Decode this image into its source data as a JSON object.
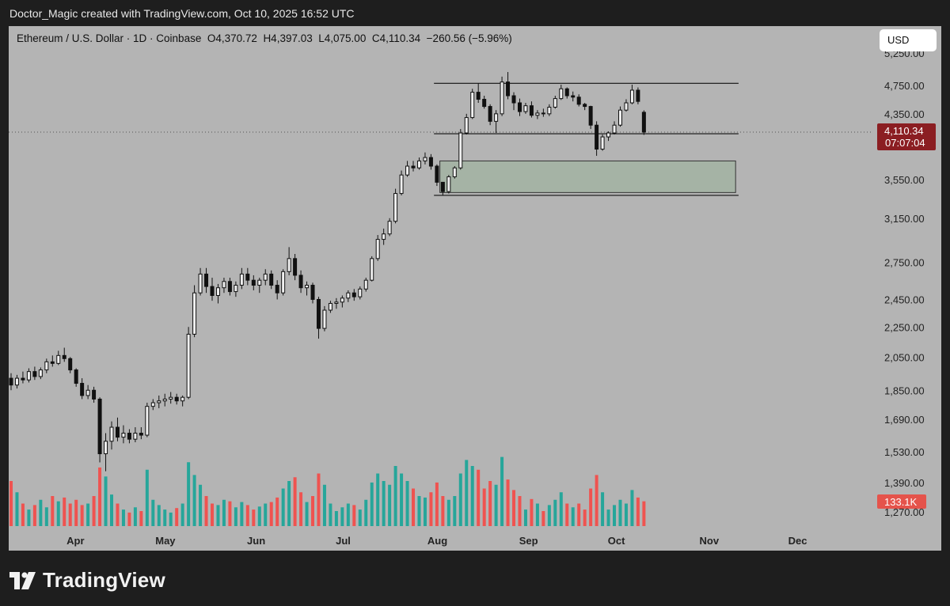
{
  "header": {
    "attribution": "Doctor_Magic created with TradingView.com, Oct 10, 2025 16:52 UTC"
  },
  "symbol_line": {
    "pair": "Ethereum / U.S. Dollar · 1D · Coinbase",
    "open": "O4,370.72",
    "high": "H4,397.03",
    "low": "L4,075.00",
    "close": "C4,110.34",
    "change": "−260.56 (−5.96%)"
  },
  "currency_button": "USD",
  "price_badge": {
    "price": "4,110.34",
    "countdown": "07:07:04",
    "color": "#8b1e22"
  },
  "volume_badge": {
    "value": "133.1K",
    "color": "#e5534b"
  },
  "brand": {
    "name": "TradingView",
    "icon": "tradingview-logo-icon"
  },
  "chart_data": {
    "type": "candlestick",
    "title": "",
    "xlabel": "",
    "ylabel": "",
    "y_scale": "log",
    "ylim": [
      1200,
      5400
    ],
    "y_ticks": [
      5250,
      4750,
      4350,
      3550,
      3150,
      2750,
      2450,
      2250,
      2050,
      1850,
      1690,
      1530,
      1390,
      1270
    ],
    "y_tick_labels": [
      "5,250.00",
      "4,750.00",
      "4,350.00",
      "3,550.00",
      "3,150.00",
      "2,750.00",
      "2,450.00",
      "2,250.00",
      "2,050.00",
      "1,850.00",
      "1,690.00",
      "1,530.00",
      "1,390.00",
      "1,270.00"
    ],
    "x_labels": [
      {
        "label": "Apr",
        "date": "2025-04-01"
      },
      {
        "label": "May",
        "date": "2025-05-01"
      },
      {
        "label": "Jun",
        "date": "2025-06-01"
      },
      {
        "label": "Jul",
        "date": "2025-07-01"
      },
      {
        "label": "Aug",
        "date": "2025-08-01"
      },
      {
        "label": "Sep",
        "date": "2025-09-01"
      },
      {
        "label": "Oct",
        "date": "2025-10-01"
      },
      {
        "label": "Nov",
        "date": "2025-11-01"
      },
      {
        "label": "Dec",
        "date": "2025-12-01"
      }
    ],
    "x_range": [
      "2025-03-10",
      "2025-12-26"
    ],
    "current_price": 4110.34,
    "colors": {
      "up": "#26a69a",
      "down": "#ef5350",
      "candle": "#111111",
      "zone": "#a3b3a3"
    },
    "levels": [
      {
        "price": 4780,
        "from": "2025-07-31",
        "to": "2025-11-11"
      },
      {
        "price": 4090,
        "from": "2025-07-31",
        "to": "2025-11-11"
      },
      {
        "price": 3380,
        "from": "2025-07-31",
        "to": "2025-11-11"
      }
    ],
    "zone": {
      "top": 3760,
      "bottom": 3410,
      "from": "2025-08-02",
      "to": "2025-11-10"
    },
    "candles": [
      [
        "2025-03-10",
        1920,
        1950,
        1850,
        1880
      ],
      [
        "2025-03-12",
        1880,
        1940,
        1860,
        1920
      ],
      [
        "2025-03-14",
        1920,
        1960,
        1890,
        1910
      ],
      [
        "2025-03-16",
        1910,
        1980,
        1895,
        1960
      ],
      [
        "2025-03-18",
        1960,
        1990,
        1910,
        1930
      ],
      [
        "2025-03-20",
        1930,
        1985,
        1915,
        1970
      ],
      [
        "2025-03-22",
        1970,
        2040,
        1950,
        2020
      ],
      [
        "2025-03-24",
        2020,
        2060,
        1990,
        2010
      ],
      [
        "2025-03-26",
        2010,
        2090,
        2000,
        2060
      ],
      [
        "2025-03-28",
        2060,
        2110,
        2020,
        2040
      ],
      [
        "2025-03-30",
        2040,
        2050,
        1950,
        1970
      ],
      [
        "2025-04-01",
        1970,
        1980,
        1870,
        1890
      ],
      [
        "2025-04-03",
        1890,
        1920,
        1800,
        1820
      ],
      [
        "2025-04-05",
        1820,
        1880,
        1800,
        1850
      ],
      [
        "2025-04-07",
        1850,
        1870,
        1780,
        1800
      ],
      [
        "2025-04-09",
        1800,
        1810,
        1480,
        1520
      ],
      [
        "2025-04-11",
        1520,
        1620,
        1440,
        1580
      ],
      [
        "2025-04-13",
        1580,
        1680,
        1540,
        1650
      ],
      [
        "2025-04-15",
        1650,
        1700,
        1580,
        1600
      ],
      [
        "2025-04-17",
        1600,
        1660,
        1570,
        1620
      ],
      [
        "2025-04-19",
        1620,
        1640,
        1570,
        1590
      ],
      [
        "2025-04-21",
        1590,
        1650,
        1575,
        1620
      ],
      [
        "2025-04-23",
        1620,
        1650,
        1590,
        1610
      ],
      [
        "2025-04-25",
        1610,
        1780,
        1600,
        1760
      ],
      [
        "2025-04-27",
        1760,
        1800,
        1740,
        1780
      ],
      [
        "2025-04-29",
        1780,
        1820,
        1750,
        1790
      ],
      [
        "2025-05-01",
        1790,
        1830,
        1760,
        1800
      ],
      [
        "2025-05-03",
        1800,
        1840,
        1775,
        1810
      ],
      [
        "2025-05-05",
        1810,
        1830,
        1770,
        1790
      ],
      [
        "2025-05-07",
        1790,
        1820,
        1760,
        1810
      ],
      [
        "2025-05-09",
        1810,
        2250,
        1800,
        2200
      ],
      [
        "2025-05-11",
        2200,
        2560,
        2180,
        2500
      ],
      [
        "2025-05-13",
        2500,
        2700,
        2480,
        2650
      ],
      [
        "2025-05-15",
        2650,
        2700,
        2500,
        2550
      ],
      [
        "2025-05-17",
        2550,
        2620,
        2440,
        2480
      ],
      [
        "2025-05-19",
        2480,
        2570,
        2420,
        2540
      ],
      [
        "2025-05-21",
        2540,
        2620,
        2500,
        2590
      ],
      [
        "2025-05-23",
        2590,
        2620,
        2480,
        2510
      ],
      [
        "2025-05-25",
        2510,
        2590,
        2470,
        2560
      ],
      [
        "2025-05-27",
        2560,
        2700,
        2530,
        2650
      ],
      [
        "2025-05-29",
        2650,
        2700,
        2560,
        2600
      ],
      [
        "2025-05-31",
        2600,
        2640,
        2520,
        2560
      ],
      [
        "2025-06-02",
        2560,
        2620,
        2500,
        2600
      ],
      [
        "2025-06-04",
        2600,
        2690,
        2560,
        2650
      ],
      [
        "2025-06-06",
        2650,
        2680,
        2530,
        2560
      ],
      [
        "2025-06-08",
        2560,
        2600,
        2450,
        2500
      ],
      [
        "2025-06-10",
        2500,
        2690,
        2480,
        2670
      ],
      [
        "2025-06-12",
        2670,
        2880,
        2640,
        2780
      ],
      [
        "2025-06-14",
        2780,
        2820,
        2600,
        2640
      ],
      [
        "2025-06-16",
        2640,
        2680,
        2500,
        2540
      ],
      [
        "2025-06-18",
        2540,
        2590,
        2480,
        2560
      ],
      [
        "2025-06-20",
        2560,
        2580,
        2420,
        2450
      ],
      [
        "2025-06-22",
        2450,
        2470,
        2170,
        2240
      ],
      [
        "2025-06-24",
        2240,
        2400,
        2220,
        2370
      ],
      [
        "2025-06-26",
        2370,
        2440,
        2350,
        2420
      ],
      [
        "2025-06-28",
        2420,
        2460,
        2380,
        2430
      ],
      [
        "2025-06-30",
        2430,
        2480,
        2390,
        2460
      ],
      [
        "2025-07-02",
        2460,
        2520,
        2430,
        2500
      ],
      [
        "2025-07-04",
        2500,
        2530,
        2440,
        2470
      ],
      [
        "2025-07-06",
        2470,
        2550,
        2450,
        2530
      ],
      [
        "2025-07-08",
        2530,
        2620,
        2510,
        2600
      ],
      [
        "2025-07-10",
        2600,
        2800,
        2590,
        2780
      ],
      [
        "2025-07-12",
        2780,
        2990,
        2760,
        2950
      ],
      [
        "2025-07-14",
        2950,
        3050,
        2900,
        3000
      ],
      [
        "2025-07-16",
        3000,
        3150,
        2980,
        3120
      ],
      [
        "2025-07-18",
        3120,
        3450,
        3100,
        3400
      ],
      [
        "2025-07-20",
        3400,
        3650,
        3380,
        3600
      ],
      [
        "2025-07-22",
        3600,
        3760,
        3580,
        3700
      ],
      [
        "2025-07-24",
        3700,
        3760,
        3640,
        3680
      ],
      [
        "2025-07-26",
        3680,
        3800,
        3660,
        3760
      ],
      [
        "2025-07-28",
        3760,
        3860,
        3720,
        3800
      ],
      [
        "2025-07-30",
        3800,
        3840,
        3660,
        3700
      ],
      [
        "2025-08-01",
        3700,
        3720,
        3480,
        3520
      ],
      [
        "2025-08-03",
        3520,
        3520,
        3380,
        3420
      ],
      [
        "2025-08-05",
        3420,
        3600,
        3400,
        3580
      ],
      [
        "2025-08-07",
        3580,
        3700,
        3560,
        3680
      ],
      [
        "2025-08-09",
        3680,
        4150,
        3660,
        4100
      ],
      [
        "2025-08-11",
        4100,
        4350,
        4080,
        4300
      ],
      [
        "2025-08-13",
        4300,
        4700,
        4280,
        4650
      ],
      [
        "2025-08-15",
        4650,
        4780,
        4500,
        4550
      ],
      [
        "2025-08-17",
        4550,
        4600,
        4420,
        4450
      ],
      [
        "2025-08-19",
        4450,
        4480,
        4200,
        4250
      ],
      [
        "2025-08-21",
        4250,
        4400,
        4100,
        4350
      ],
      [
        "2025-08-23",
        4350,
        4880,
        4320,
        4800
      ],
      [
        "2025-08-25",
        4800,
        4950,
        4550,
        4600
      ],
      [
        "2025-08-27",
        4600,
        4650,
        4400,
        4500
      ],
      [
        "2025-08-29",
        4500,
        4560,
        4320,
        4380
      ],
      [
        "2025-08-31",
        4380,
        4500,
        4350,
        4460
      ],
      [
        "2025-09-02",
        4460,
        4520,
        4300,
        4330
      ],
      [
        "2025-09-04",
        4330,
        4400,
        4280,
        4360
      ],
      [
        "2025-09-06",
        4360,
        4420,
        4310,
        4350
      ],
      [
        "2025-09-08",
        4350,
        4480,
        4320,
        4440
      ],
      [
        "2025-09-10",
        4440,
        4600,
        4420,
        4560
      ],
      [
        "2025-09-12",
        4560,
        4760,
        4540,
        4700
      ],
      [
        "2025-09-14",
        4700,
        4720,
        4560,
        4600
      ],
      [
        "2025-09-16",
        4600,
        4660,
        4520,
        4580
      ],
      [
        "2025-09-18",
        4580,
        4620,
        4450,
        4480
      ],
      [
        "2025-09-20",
        4480,
        4500,
        4400,
        4450
      ],
      [
        "2025-09-22",
        4450,
        4460,
        4150,
        4200
      ],
      [
        "2025-09-24",
        4200,
        4250,
        3820,
        3900
      ],
      [
        "2025-09-26",
        3900,
        4080,
        3880,
        4050
      ],
      [
        "2025-09-28",
        4050,
        4120,
        4000,
        4100
      ],
      [
        "2025-09-30",
        4100,
        4250,
        4080,
        4200
      ],
      [
        "2025-10-02",
        4200,
        4450,
        4180,
        4400
      ],
      [
        "2025-10-04",
        4400,
        4550,
        4380,
        4500
      ],
      [
        "2025-10-06",
        4500,
        4760,
        4480,
        4680
      ],
      [
        "2025-10-08",
        4680,
        4720,
        4480,
        4520
      ],
      [
        "2025-10-10",
        4370.72,
        4397.03,
        4075,
        4110.34
      ]
    ],
    "volume": [
      [
        "2025-03-10",
        60,
        "down"
      ],
      [
        "2025-03-12",
        45,
        "up"
      ],
      [
        "2025-03-14",
        30,
        "down"
      ],
      [
        "2025-03-16",
        22,
        "up"
      ],
      [
        "2025-03-18",
        28,
        "down"
      ],
      [
        "2025-03-20",
        35,
        "up"
      ],
      [
        "2025-03-22",
        25,
        "up"
      ],
      [
        "2025-03-24",
        40,
        "down"
      ],
      [
        "2025-03-26",
        33,
        "up"
      ],
      [
        "2025-03-28",
        38,
        "down"
      ],
      [
        "2025-03-30",
        30,
        "down"
      ],
      [
        "2025-04-01",
        35,
        "down"
      ],
      [
        "2025-04-03",
        28,
        "down"
      ],
      [
        "2025-04-05",
        30,
        "up"
      ],
      [
        "2025-04-07",
        40,
        "down"
      ],
      [
        "2025-04-09",
        78,
        "down"
      ],
      [
        "2025-04-11",
        66,
        "up"
      ],
      [
        "2025-04-13",
        42,
        "up"
      ],
      [
        "2025-04-15",
        30,
        "down"
      ],
      [
        "2025-04-17",
        22,
        "up"
      ],
      [
        "2025-04-19",
        18,
        "down"
      ],
      [
        "2025-04-21",
        25,
        "up"
      ],
      [
        "2025-04-23",
        20,
        "down"
      ],
      [
        "2025-04-25",
        75,
        "up"
      ],
      [
        "2025-04-27",
        35,
        "up"
      ],
      [
        "2025-04-29",
        28,
        "up"
      ],
      [
        "2025-05-01",
        22,
        "up"
      ],
      [
        "2025-05-03",
        18,
        "up"
      ],
      [
        "2025-05-05",
        24,
        "down"
      ],
      [
        "2025-05-07",
        30,
        "up"
      ],
      [
        "2025-05-09",
        85,
        "up"
      ],
      [
        "2025-05-11",
        68,
        "up"
      ],
      [
        "2025-05-13",
        55,
        "up"
      ],
      [
        "2025-05-15",
        40,
        "down"
      ],
      [
        "2025-05-17",
        30,
        "down"
      ],
      [
        "2025-05-19",
        28,
        "up"
      ],
      [
        "2025-05-21",
        35,
        "up"
      ],
      [
        "2025-05-23",
        33,
        "down"
      ],
      [
        "2025-05-25",
        25,
        "up"
      ],
      [
        "2025-05-27",
        32,
        "up"
      ],
      [
        "2025-05-29",
        28,
        "down"
      ],
      [
        "2025-05-31",
        22,
        "down"
      ],
      [
        "2025-06-02",
        26,
        "up"
      ],
      [
        "2025-06-04",
        30,
        "up"
      ],
      [
        "2025-06-06",
        32,
        "down"
      ],
      [
        "2025-06-08",
        38,
        "down"
      ],
      [
        "2025-06-10",
        50,
        "up"
      ],
      [
        "2025-06-12",
        60,
        "up"
      ],
      [
        "2025-06-14",
        65,
        "down"
      ],
      [
        "2025-06-16",
        45,
        "down"
      ],
      [
        "2025-06-18",
        32,
        "up"
      ],
      [
        "2025-06-20",
        40,
        "down"
      ],
      [
        "2025-06-22",
        70,
        "down"
      ],
      [
        "2025-06-24",
        55,
        "up"
      ],
      [
        "2025-06-26",
        30,
        "up"
      ],
      [
        "2025-06-28",
        20,
        "up"
      ],
      [
        "2025-06-30",
        25,
        "up"
      ],
      [
        "2025-07-02",
        30,
        "up"
      ],
      [
        "2025-07-04",
        28,
        "down"
      ],
      [
        "2025-07-06",
        22,
        "up"
      ],
      [
        "2025-07-08",
        35,
        "up"
      ],
      [
        "2025-07-10",
        58,
        "up"
      ],
      [
        "2025-07-12",
        70,
        "up"
      ],
      [
        "2025-07-14",
        60,
        "up"
      ],
      [
        "2025-07-16",
        55,
        "up"
      ],
      [
        "2025-07-18",
        80,
        "up"
      ],
      [
        "2025-07-20",
        70,
        "up"
      ],
      [
        "2025-07-22",
        60,
        "up"
      ],
      [
        "2025-07-24",
        50,
        "down"
      ],
      [
        "2025-07-26",
        40,
        "up"
      ],
      [
        "2025-07-28",
        38,
        "up"
      ],
      [
        "2025-07-30",
        45,
        "down"
      ],
      [
        "2025-08-01",
        58,
        "down"
      ],
      [
        "2025-08-03",
        40,
        "down"
      ],
      [
        "2025-08-05",
        35,
        "up"
      ],
      [
        "2025-08-07",
        40,
        "up"
      ],
      [
        "2025-08-09",
        70,
        "up"
      ],
      [
        "2025-08-11",
        88,
        "up"
      ],
      [
        "2025-08-13",
        80,
        "up"
      ],
      [
        "2025-08-15",
        75,
        "down"
      ],
      [
        "2025-08-17",
        50,
        "down"
      ],
      [
        "2025-08-19",
        60,
        "down"
      ],
      [
        "2025-08-21",
        55,
        "up"
      ],
      [
        "2025-08-23",
        92,
        "up"
      ],
      [
        "2025-08-25",
        62,
        "down"
      ],
      [
        "2025-08-27",
        48,
        "down"
      ],
      [
        "2025-08-29",
        40,
        "down"
      ],
      [
        "2025-08-31",
        22,
        "up"
      ],
      [
        "2025-09-02",
        36,
        "down"
      ],
      [
        "2025-09-04",
        30,
        "up"
      ],
      [
        "2025-09-06",
        20,
        "down"
      ],
      [
        "2025-09-08",
        28,
        "up"
      ],
      [
        "2025-09-10",
        35,
        "up"
      ],
      [
        "2025-09-12",
        45,
        "up"
      ],
      [
        "2025-09-14",
        30,
        "down"
      ],
      [
        "2025-09-16",
        25,
        "up"
      ],
      [
        "2025-09-18",
        30,
        "down"
      ],
      [
        "2025-09-20",
        22,
        "down"
      ],
      [
        "2025-09-22",
        50,
        "down"
      ],
      [
        "2025-09-24",
        68,
        "down"
      ],
      [
        "2025-09-26",
        45,
        "up"
      ],
      [
        "2025-09-28",
        22,
        "up"
      ],
      [
        "2025-09-30",
        28,
        "up"
      ],
      [
        "2025-10-02",
        35,
        "up"
      ],
      [
        "2025-10-04",
        30,
        "up"
      ],
      [
        "2025-10-06",
        48,
        "up"
      ],
      [
        "2025-10-08",
        38,
        "down"
      ],
      [
        "2025-10-10",
        33,
        "down"
      ]
    ]
  }
}
